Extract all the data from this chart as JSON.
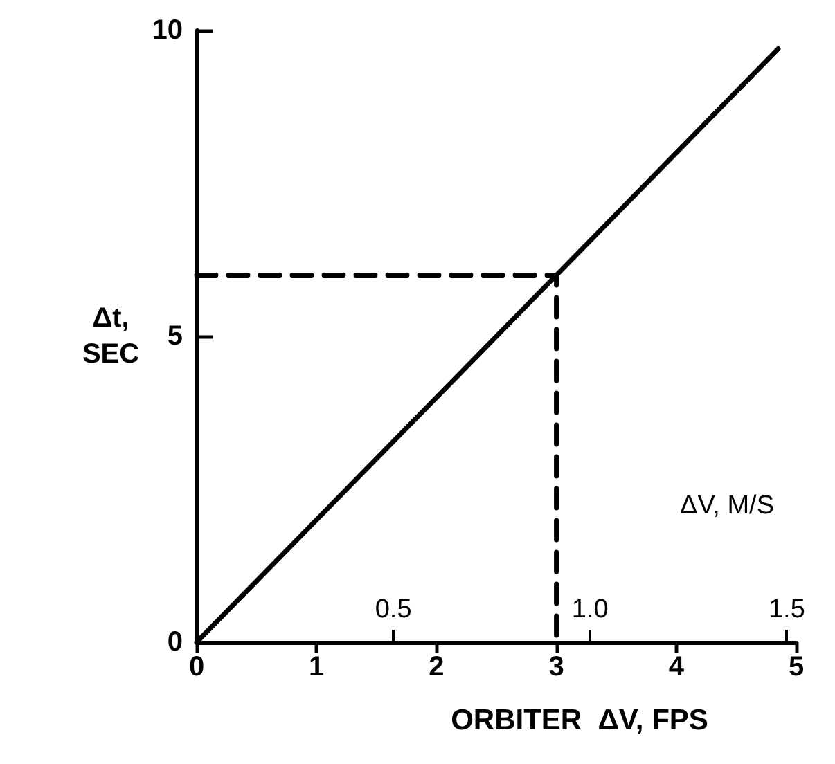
{
  "chart_data": {
    "type": "line",
    "xlabel": "ORBITER  ΔV, FPS",
    "ylabel": "Δt,\nSEC",
    "x2label": "ΔV, M/S",
    "xlim": [
      0,
      5
    ],
    "xticks": [
      0,
      1,
      2,
      3,
      4,
      5
    ],
    "ylim": [
      0,
      10
    ],
    "yticks": [
      0,
      5,
      10
    ],
    "x2lim": [
      0,
      1.524
    ],
    "x2ticks": [
      0.5,
      {
        "value": 1.0,
        "label": "1.0"
      },
      1.5
    ],
    "grid": false,
    "marker": "none",
    "series": [
      {
        "color": "#000000",
        "x": [
          0,
          3,
          4.85
        ],
        "values": [
          0,
          6,
          9.7
        ],
        "line_style": "solid"
      },
      {
        "color": "#000000",
        "x": [
          0,
          3,
          3
        ],
        "values": [
          6,
          6,
          0
        ],
        "line_style": "dashed"
      }
    ]
  }
}
